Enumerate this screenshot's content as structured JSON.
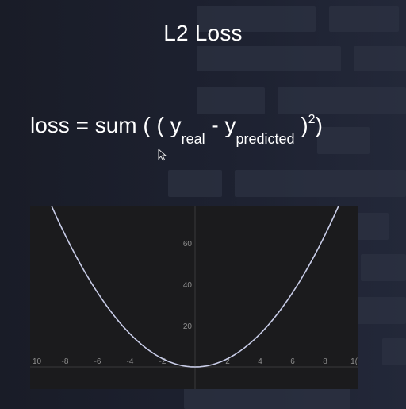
{
  "slide": {
    "title": "L2 Loss",
    "formula": {
      "lhs": "loss = sum ( ( y",
      "real_sub": "real",
      "minus": " - y",
      "pred_sub": "predicted",
      "close": " )",
      "exponent": "2",
      "end": ")"
    }
  },
  "chart_data": {
    "type": "line",
    "function": "y = x^2",
    "x_range": [
      -10,
      10
    ],
    "y_range": [
      0,
      80
    ],
    "x_ticks": [
      "10",
      "-8",
      "-6",
      "-4",
      "-2",
      "2",
      "4",
      "6",
      "8",
      "1("
    ],
    "y_ticks": [
      "20",
      "40",
      "60"
    ],
    "series": [
      {
        "color": "#c9cde8",
        "points": [
          {
            "x": -9.5,
            "y": 90.25
          },
          {
            "x": -9,
            "y": 81
          },
          {
            "x": -8,
            "y": 64
          },
          {
            "x": -7,
            "y": 49
          },
          {
            "x": -6,
            "y": 36
          },
          {
            "x": -5,
            "y": 25
          },
          {
            "x": -4,
            "y": 16
          },
          {
            "x": -3,
            "y": 9
          },
          {
            "x": -2,
            "y": 4
          },
          {
            "x": -1,
            "y": 1
          },
          {
            "x": 0,
            "y": 0
          },
          {
            "x": 1,
            "y": 1
          },
          {
            "x": 2,
            "y": 4
          },
          {
            "x": 3,
            "y": 9
          },
          {
            "x": 4,
            "y": 16
          },
          {
            "x": 5,
            "y": 25
          },
          {
            "x": 6,
            "y": 36
          },
          {
            "x": 7,
            "y": 49
          },
          {
            "x": 8,
            "y": 64
          },
          {
            "x": 9,
            "y": 81
          },
          {
            "x": 9.5,
            "y": 90.25
          }
        ]
      }
    ],
    "grid": false,
    "axis_color": "#3a3a3a",
    "background": "#1b1b1d"
  }
}
